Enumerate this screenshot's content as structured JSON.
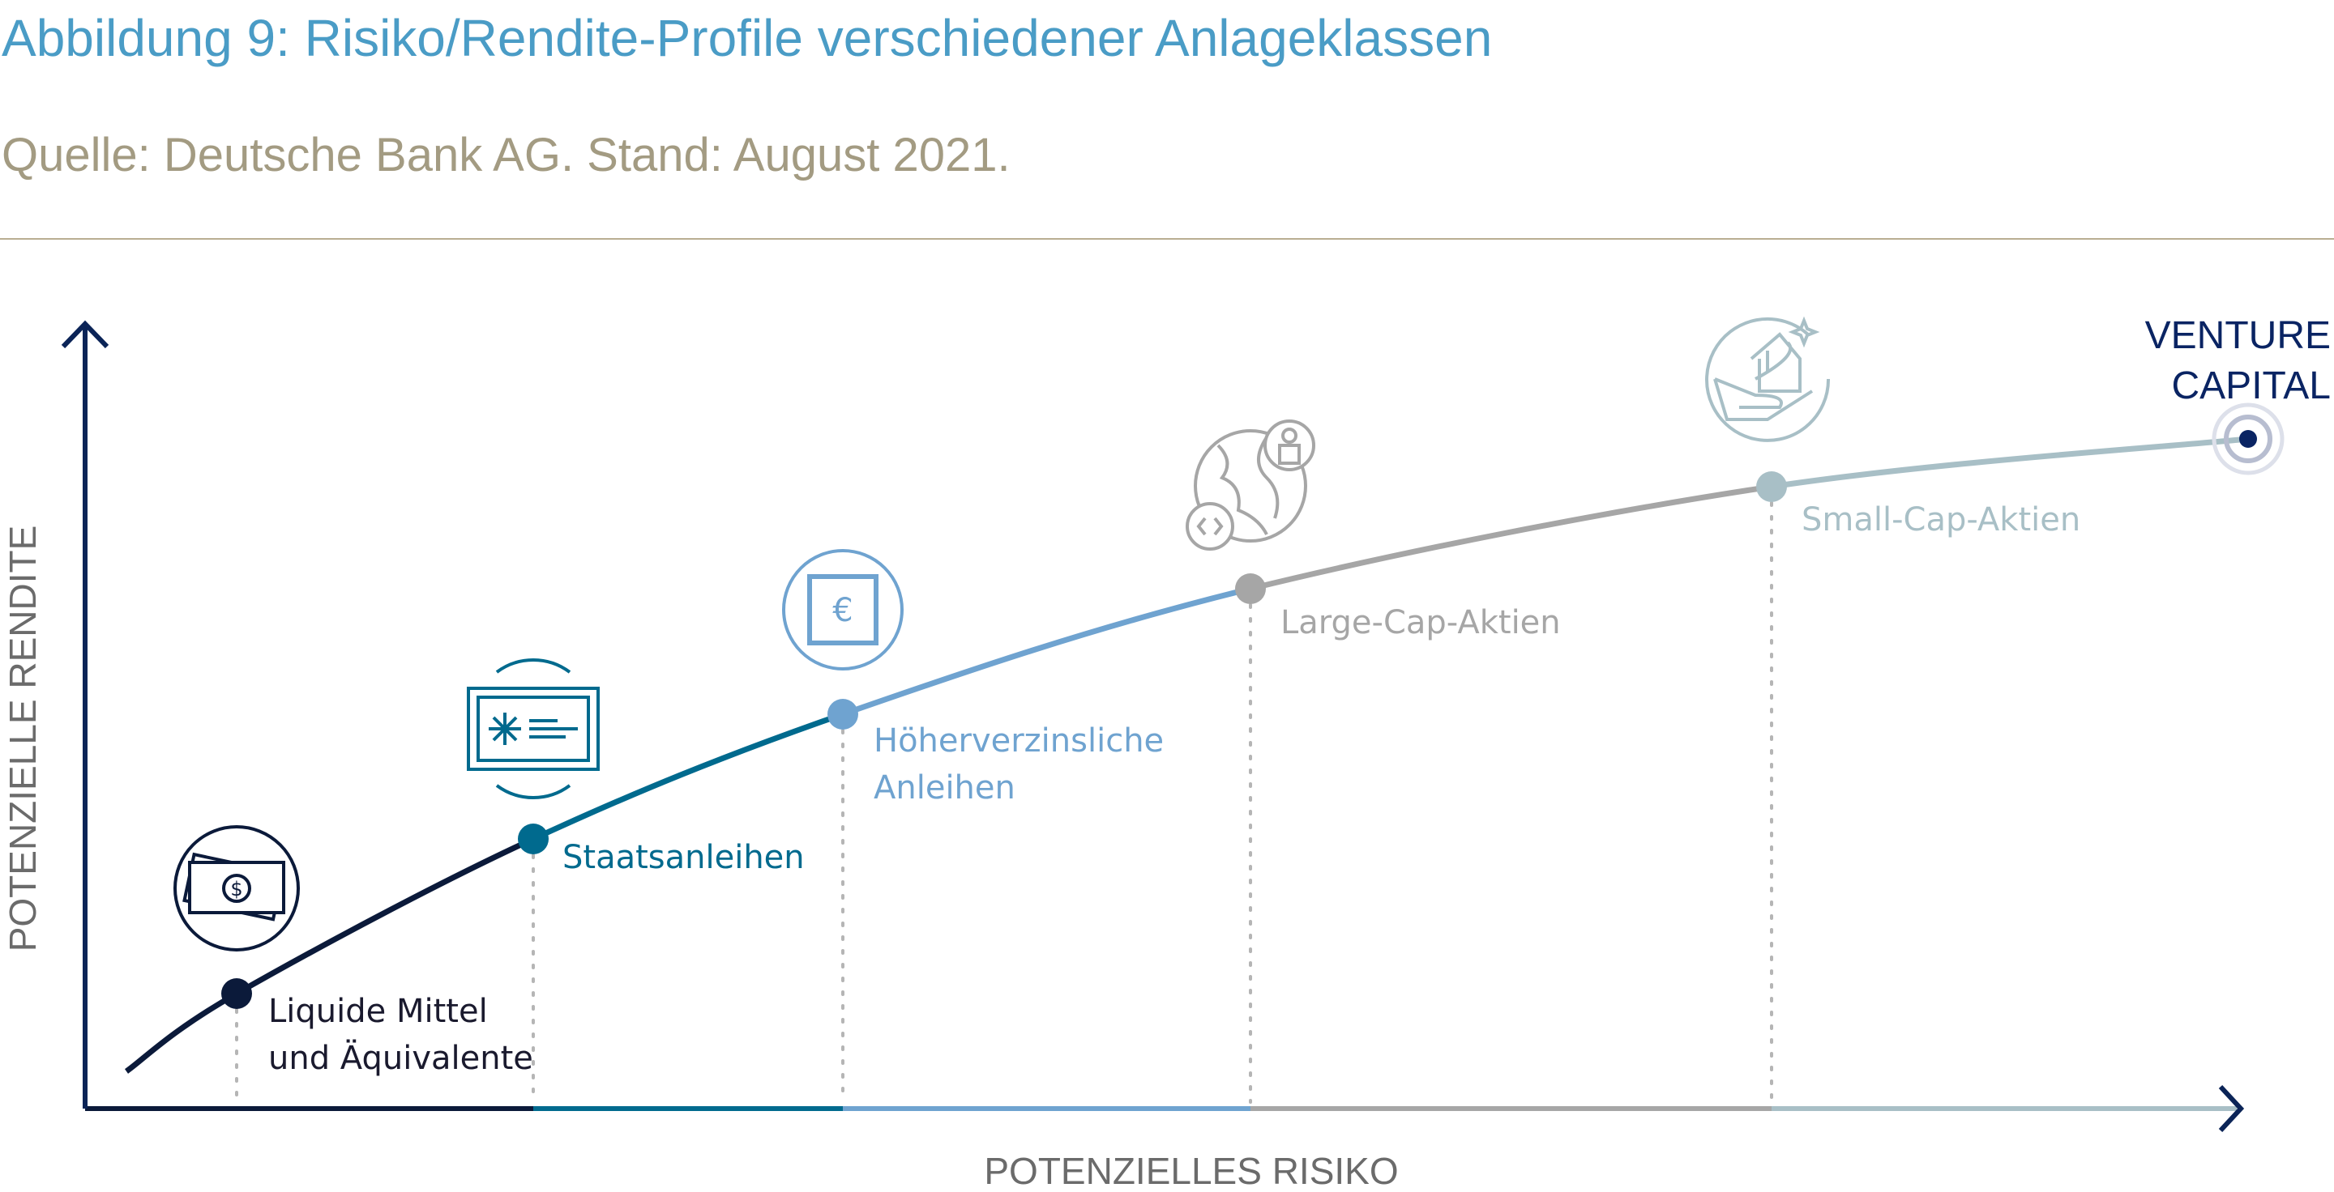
{
  "title": "Abbildung 9: Risiko/Rendite-Profile verschiedener Anlageklassen",
  "subtitle": "Quelle: Deutsche Bank AG. Stand: August 2021.",
  "chart_data": {
    "type": "line",
    "xlabel": "POTENZIELLES RISIKO",
    "ylabel": "POTENZIELLE RENDITE",
    "grid": false,
    "categories": [
      {
        "label_lines": [
          "Liquide Mittel",
          "und Äquivalente"
        ],
        "color": "#0b1a3a",
        "icon": "cash-icon"
      },
      {
        "label_lines": [
          "Staatsanleihen"
        ],
        "color": "#006a8e",
        "icon": "bond-certificate-icon"
      },
      {
        "label_lines": [
          "Höherverzinsliche",
          "Anleihen"
        ],
        "color": "#6fa3d0",
        "icon": "euro-note-icon"
      },
      {
        "label_lines": [
          "Large-Cap-Aktien"
        ],
        "color": "#a6a6a6",
        "icon": "globe-person-icon"
      },
      {
        "label_lines": [
          "Small-Cap-Aktien"
        ],
        "color": "#a8bfc6",
        "icon": "house-in-hand-icon"
      },
      {
        "label_lines": [
          "VENTURE",
          "CAPITAL"
        ],
        "color": "#0a2463",
        "icon": "target-icon"
      }
    ]
  },
  "colors": {
    "title": "#4a9cc6",
    "subtitle": "#a39b82",
    "axis": "#0b2457"
  }
}
